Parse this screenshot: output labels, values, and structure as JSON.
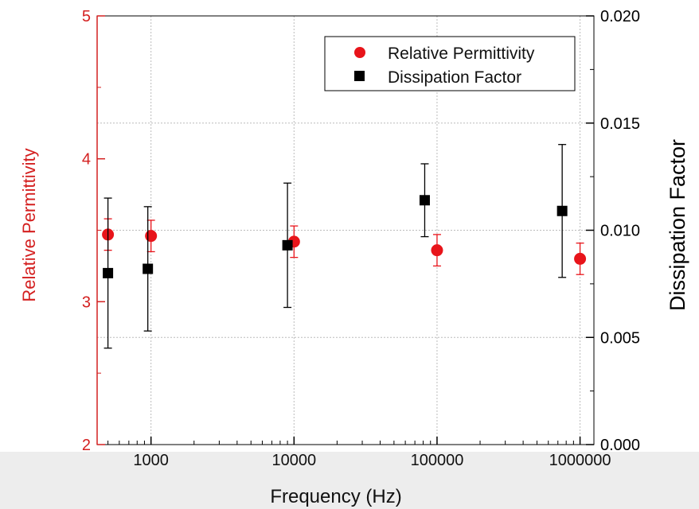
{
  "chart_data": {
    "type": "scatter",
    "xlabel": "Frequency (Hz)",
    "ylabel": "Relative Permittivity",
    "y2label": "Dissipation Factor",
    "x_scale": "log",
    "xlim": [
      420,
      1250000
    ],
    "ylim": [
      2,
      5
    ],
    "y2lim": [
      0,
      0.02
    ],
    "x_ticks": [
      1000,
      10000,
      100000,
      1000000
    ],
    "x_tick_labels": [
      "1000",
      "10000",
      "100000",
      "1000000"
    ],
    "y_ticks": [
      2,
      3,
      4,
      5
    ],
    "y_tick_labels": [
      "2",
      "3",
      "4",
      "5"
    ],
    "y2_ticks": [
      0,
      0.005,
      0.01,
      0.015,
      0.02
    ],
    "y2_tick_labels": [
      "0.000",
      "0.005",
      "0.010",
      "0.015",
      "0.020"
    ],
    "grid": true,
    "legend_position": "top-right",
    "series": [
      {
        "name": "Relative Permittivity",
        "axis": "left",
        "marker": "circle",
        "color": "#e8141a",
        "points": [
          {
            "x": 500,
            "y": 3.47,
            "err": 0.11
          },
          {
            "x": 1000,
            "y": 3.46,
            "err": 0.11
          },
          {
            "x": 10000,
            "y": 3.42,
            "err": 0.11
          },
          {
            "x": 100000,
            "y": 3.36,
            "err": 0.11
          },
          {
            "x": 1000000,
            "y": 3.3,
            "err": 0.11
          }
        ]
      },
      {
        "name": "Dissipation Factor",
        "axis": "right",
        "marker": "square",
        "color": "#000000",
        "points": [
          {
            "x": 500,
            "y": 0.008,
            "err": 0.0035
          },
          {
            "x": 950,
            "y": 0.0082,
            "err": 0.0029
          },
          {
            "x": 9000,
            "y": 0.0093,
            "err": 0.0029
          },
          {
            "x": 82000,
            "y": 0.0114,
            "err": 0.0017
          },
          {
            "x": 750000,
            "y": 0.0109,
            "err": 0.0031
          }
        ]
      }
    ]
  },
  "colors": {
    "left_axis": "#d42020",
    "right_axis": "#000000",
    "grid": "#bbbbbb",
    "footer_band": "#ededed"
  }
}
